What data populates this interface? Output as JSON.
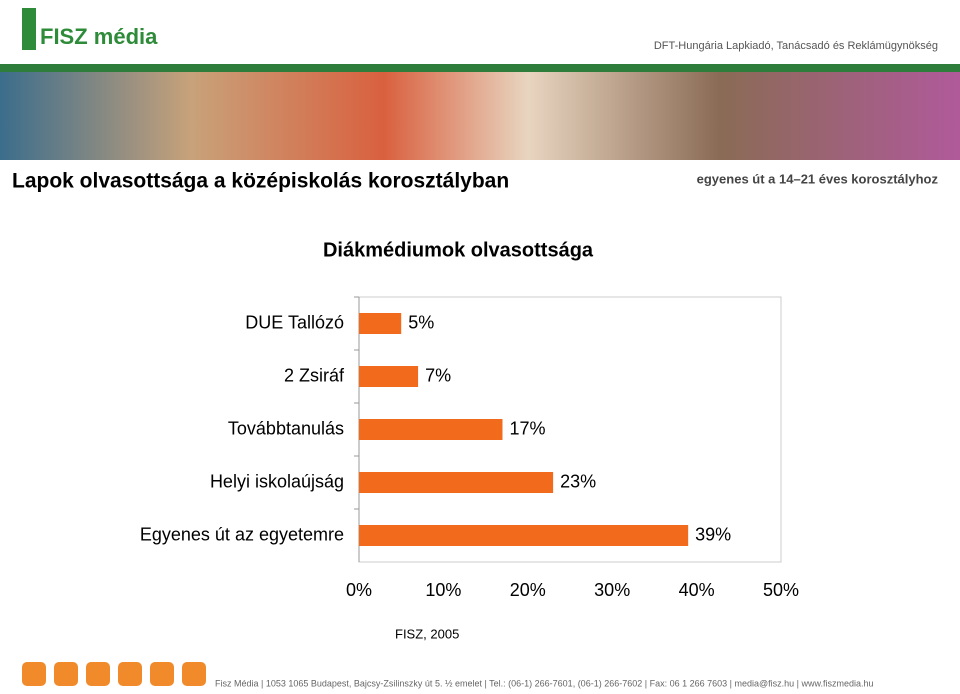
{
  "header": {
    "logo": "FISZ média",
    "company": "DFT-Hungária Lapkiadó, Tanácsadó és Reklámügynökség",
    "title": "Lapok olvasottsága a középiskolás korosztályban",
    "slogan": "egyenes út a 14–21 éves korosztályhoz"
  },
  "chart_data": {
    "type": "hbar",
    "title": "Diákmédiumok olvasottsága",
    "categories": [
      "DUE Tallózó",
      "2 Zsiráf",
      "Továbbtanulás",
      "Helyi iskolaújság",
      "Egyenes út az egyetemre"
    ],
    "values": [
      5,
      7,
      17,
      23,
      39
    ],
    "value_labels": [
      "5%",
      "7%",
      "17%",
      "23%",
      "39%"
    ],
    "color": "#f26a1b",
    "xlim": [
      0,
      50
    ],
    "xticks": [
      {
        "value": 0,
        "label": "0%"
      },
      {
        "value": 10,
        "label": "10%"
      },
      {
        "value": 20,
        "label": "20%"
      },
      {
        "value": 30,
        "label": "30%"
      },
      {
        "value": 40,
        "label": "40%"
      },
      {
        "value": 50,
        "label": "50%"
      }
    ],
    "grid": false,
    "source": "FISZ, 2005"
  },
  "footer": "Fisz Média | 1053 1065 Budapest, Bajcsy-Zsilinszky út 5. ½ emelet | Tel.: (06-1) 266-7601, (06-1) 266-7602 | Fax: 06 1 266 7603 | media@fisz.hu | www.fiszmedia.hu"
}
